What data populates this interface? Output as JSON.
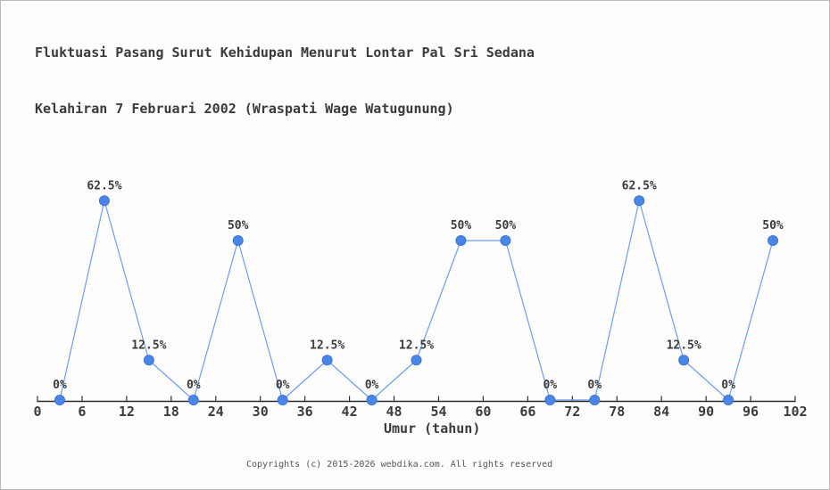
{
  "window": {
    "background": "#fdfdfd",
    "border_color": "#b9b9b9"
  },
  "title": {
    "line1": "Fluktuasi Pasang Surut Kehidupan Menurut Lontar Pal Sri Sedana",
    "line2": "Kelahiran 7 Februari 2002 (Wraspati Wage Watugunung)"
  },
  "footer": {
    "text": "Copyrights (c) 2015-2026 webdika.com. All rights reserved"
  },
  "chart_data": {
    "type": "line",
    "title": "Fluktuasi Pasang Surut Kehidupan Menurut Lontar Pal Sri Sedana Kelahiran 7 Februari 2002 (Wraspati Wage Watugunung)",
    "xlabel": "Umur (tahun)",
    "ylabel": "",
    "x": [
      3,
      9,
      15,
      21,
      27,
      33,
      39,
      45,
      51,
      57,
      63,
      69,
      75,
      81,
      87,
      93,
      99
    ],
    "values": [
      0,
      62.5,
      12.5,
      0,
      50,
      0,
      12.5,
      0,
      12.5,
      50,
      50,
      0,
      0,
      62.5,
      12.5,
      0,
      50
    ],
    "point_labels": [
      "0%",
      "62.5%",
      "12.5%",
      "0%",
      "50%",
      "0%",
      "12.5%",
      "0%",
      "12.5%",
      "50%",
      "50%",
      "0%",
      "0%",
      "62.5%",
      "12.5%",
      "0%",
      "50%"
    ],
    "x_ticks": [
      0,
      6,
      12,
      18,
      24,
      30,
      36,
      42,
      48,
      54,
      60,
      66,
      72,
      78,
      84,
      90,
      96,
      102
    ],
    "xlim": [
      0,
      102
    ],
    "ylim": [
      0,
      100
    ],
    "grid": false,
    "legend": "none",
    "y_axis_shown": false,
    "marker_color": "#4a86e8",
    "marker_edge_color": "#3d74d6",
    "line_color": "#6d9eeb",
    "axis_color": "#2b2b2b",
    "label_color": "#3b3b3b"
  }
}
